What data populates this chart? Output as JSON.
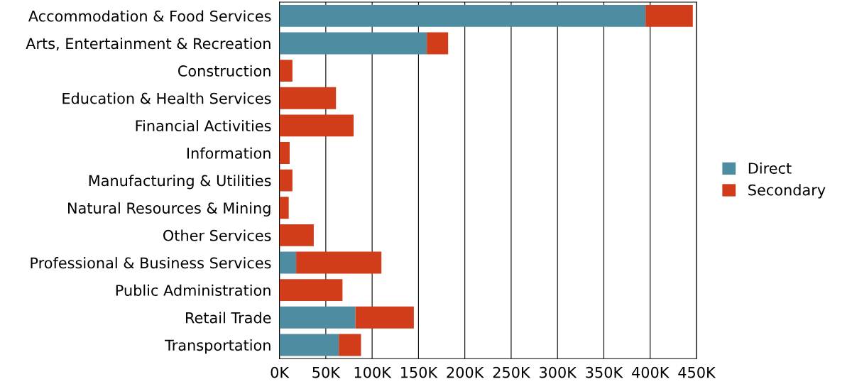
{
  "chart_data": {
    "type": "bar",
    "orientation": "horizontal",
    "stacked": true,
    "categories": [
      "Accommodation & Food Services",
      "Arts, Entertainment & Recreation",
      "Construction",
      "Education & Health Services",
      "Financial Activities",
      "Information",
      "Manufacturing & Utilities",
      "Natural Resources & Mining",
      "Other Services",
      "Professional & Business Services",
      "Public Administration",
      "Retail Trade",
      "Transportation"
    ],
    "series": [
      {
        "name": "Direct",
        "color": "#4e8ca1",
        "values": [
          395000,
          159000,
          0,
          0,
          0,
          0,
          0,
          0,
          0,
          18000,
          0,
          82000,
          64000
        ]
      },
      {
        "name": "Secondary",
        "color": "#d13c1a",
        "values": [
          51000,
          23000,
          14000,
          61000,
          80000,
          11000,
          14000,
          10000,
          37000,
          92000,
          68000,
          63000,
          24000
        ]
      }
    ],
    "xlim": [
      0,
      450000
    ],
    "xticks": [
      {
        "value": 0,
        "label": "0K"
      },
      {
        "value": 50000,
        "label": "50K"
      },
      {
        "value": 100000,
        "label": "100K"
      },
      {
        "value": 150000,
        "label": "150K"
      },
      {
        "value": 200000,
        "label": "200K"
      },
      {
        "value": 250000,
        "label": "250K"
      },
      {
        "value": 300000,
        "label": "300K"
      },
      {
        "value": 350000,
        "label": "350K"
      },
      {
        "value": 400000,
        "label": "400K"
      },
      {
        "value": 450000,
        "label": "450K"
      }
    ],
    "grid": "x",
    "legend": "right"
  }
}
